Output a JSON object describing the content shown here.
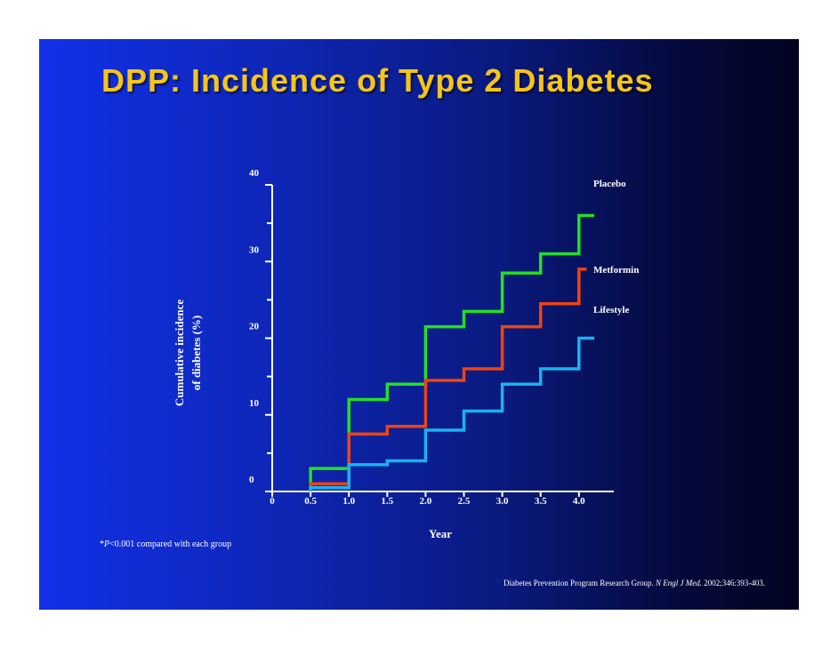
{
  "slide": {
    "title": "DPP: Incidence of Type 2 Diabetes",
    "footnote": {
      "prefix": "*",
      "p": "P",
      "rest": "<0.001 compared with each group"
    },
    "citation": {
      "authors": "Diabetes Prevention Program Research Group. ",
      "journal": "N Engl J Med.",
      "ref": " 2002;346:393-403."
    }
  },
  "chart_data": {
    "type": "line",
    "step": true,
    "title": "DPP: Incidence of Type 2 Diabetes",
    "xlabel": "Year",
    "ylabel_lines": [
      "Cumulative incidence",
      "of diabetes (%)"
    ],
    "xlim": [
      0,
      4.5
    ],
    "ylim": [
      0,
      40
    ],
    "x_ticks": [
      0,
      0.5,
      1.0,
      1.5,
      2.0,
      2.5,
      3.0,
      3.5,
      4.0
    ],
    "x_tick_labels": [
      "0",
      "0.5",
      "1.0",
      "1.5",
      "2.0",
      "2.5",
      "3.0",
      "3.5",
      "4.0"
    ],
    "y_ticks": [
      0,
      10,
      20,
      30,
      40
    ],
    "y_tick_labels": [
      "0",
      "10",
      "20",
      "30",
      "40"
    ],
    "y_minor_ticks": [
      5,
      15,
      25,
      35
    ],
    "series": [
      {
        "name": "Placebo",
        "color": "#22e022",
        "x": [
          0.5,
          1.0,
          1.5,
          2.0,
          2.5,
          3.0,
          3.5,
          4.0,
          4.2
        ],
        "y": [
          3,
          12,
          14,
          21.5,
          23.5,
          28.5,
          31,
          36,
          36
        ]
      },
      {
        "name": "Metformin",
        "color": "#ee4411",
        "x": [
          0.5,
          1.0,
          1.5,
          2.0,
          2.5,
          3.0,
          3.5,
          4.0,
          4.1
        ],
        "y": [
          1,
          7.5,
          8.5,
          14.5,
          16,
          21.5,
          24.5,
          29,
          29
        ]
      },
      {
        "name": "Lifestyle",
        "color": "#1ab2f0",
        "x": [
          0.5,
          1.0,
          1.5,
          2.0,
          2.5,
          3.0,
          3.5,
          4.0,
          4.2
        ],
        "y": [
          0.5,
          3.5,
          4,
          8,
          10.5,
          14,
          16,
          20,
          20
        ]
      }
    ]
  }
}
